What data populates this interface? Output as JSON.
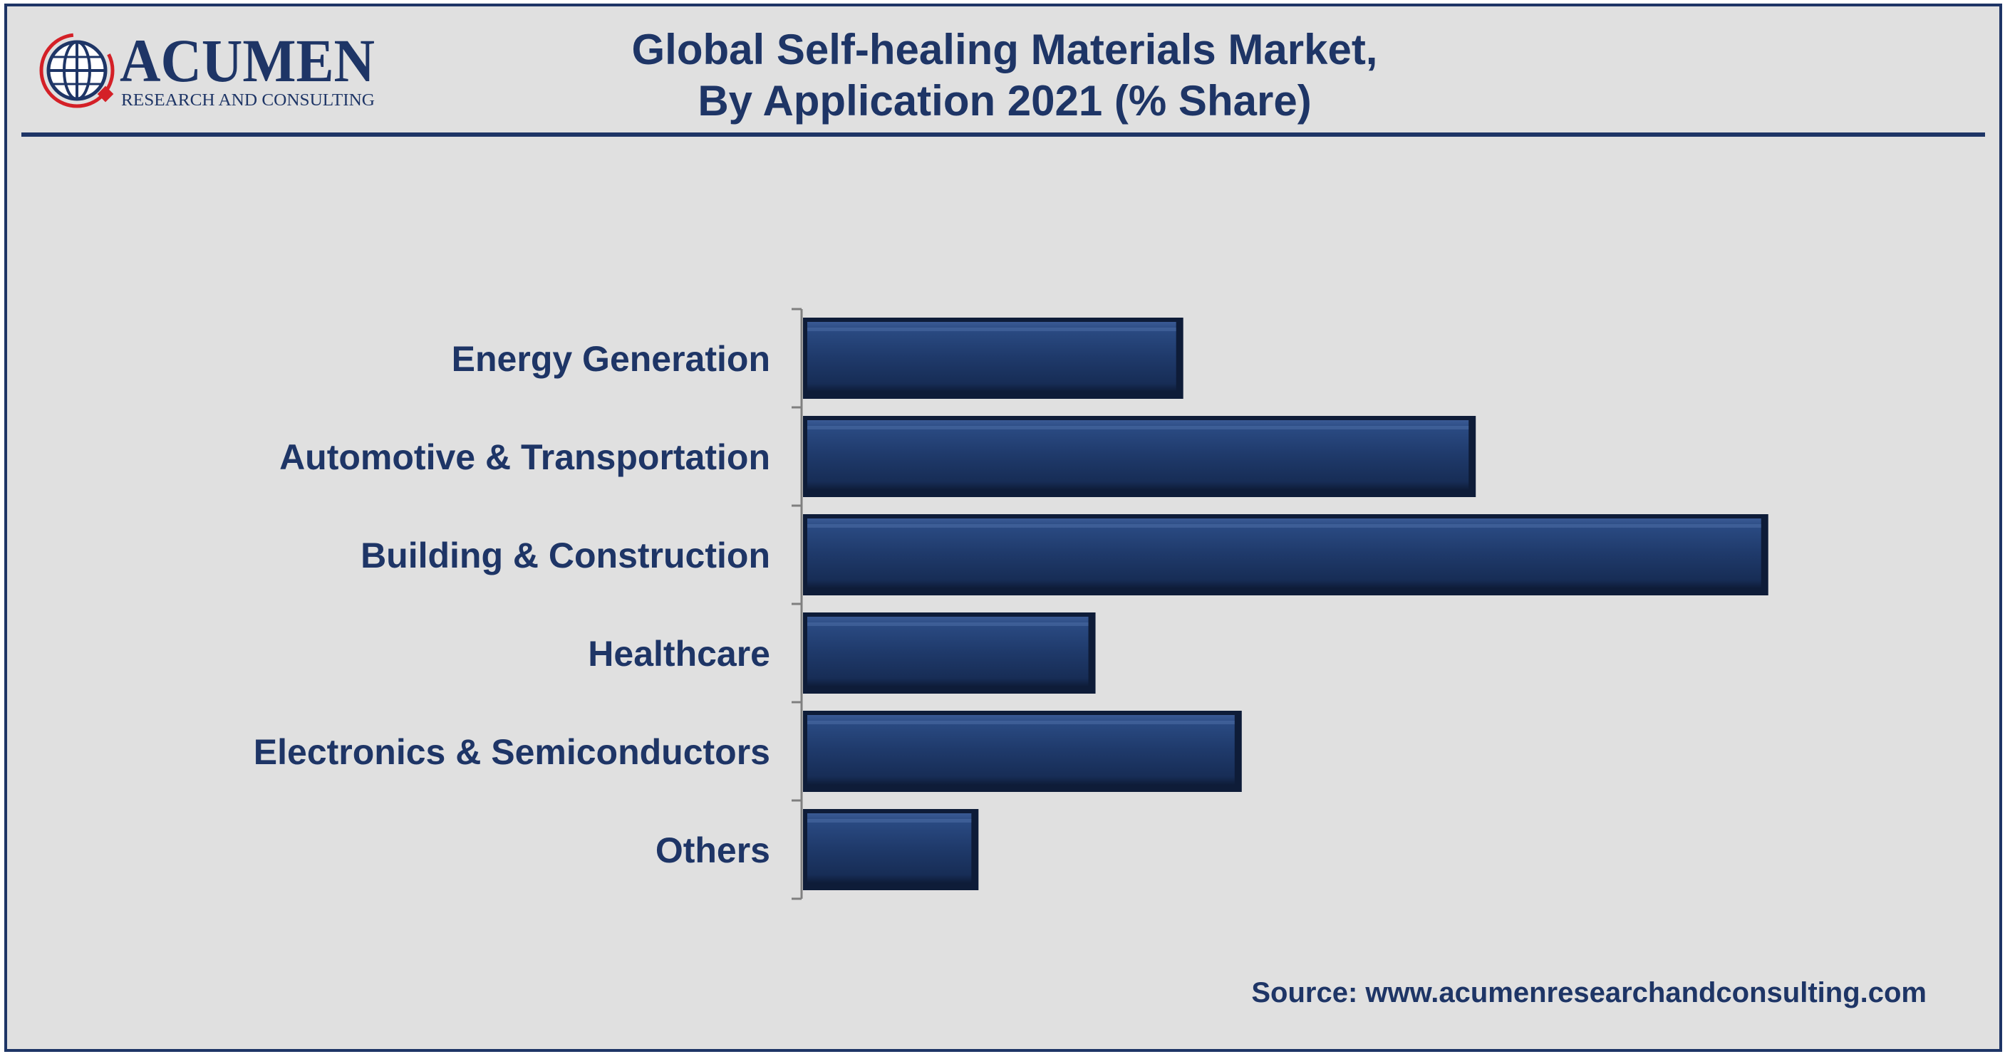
{
  "header": {
    "title_line1": "Global Self-healing Materials Market,",
    "title_line2": "By Application 2021 (% Share)"
  },
  "logo": {
    "name": "ACUMEN",
    "tagline": "RESEARCH AND CONSULTING",
    "icon": "globe-icon"
  },
  "footer": {
    "source": "Source: www.acumenresearchandconsulting.com"
  },
  "colors": {
    "brand": "#1e3566",
    "bar": "#1f3a6b",
    "background": "#e0e0e0",
    "logo_accent": "#d42027"
  },
  "chart_data": {
    "type": "bar",
    "orientation": "horizontal",
    "categories": [
      "Energy Generation",
      "Automotive & Transportation",
      "Building & Construction",
      "Healthcare",
      "Electronics & Semiconductors",
      "Others"
    ],
    "values": [
      13,
      23,
      33,
      10,
      15,
      6
    ],
    "xlim": [
      0,
      47.5
    ],
    "grid": false,
    "legend": "none"
  }
}
